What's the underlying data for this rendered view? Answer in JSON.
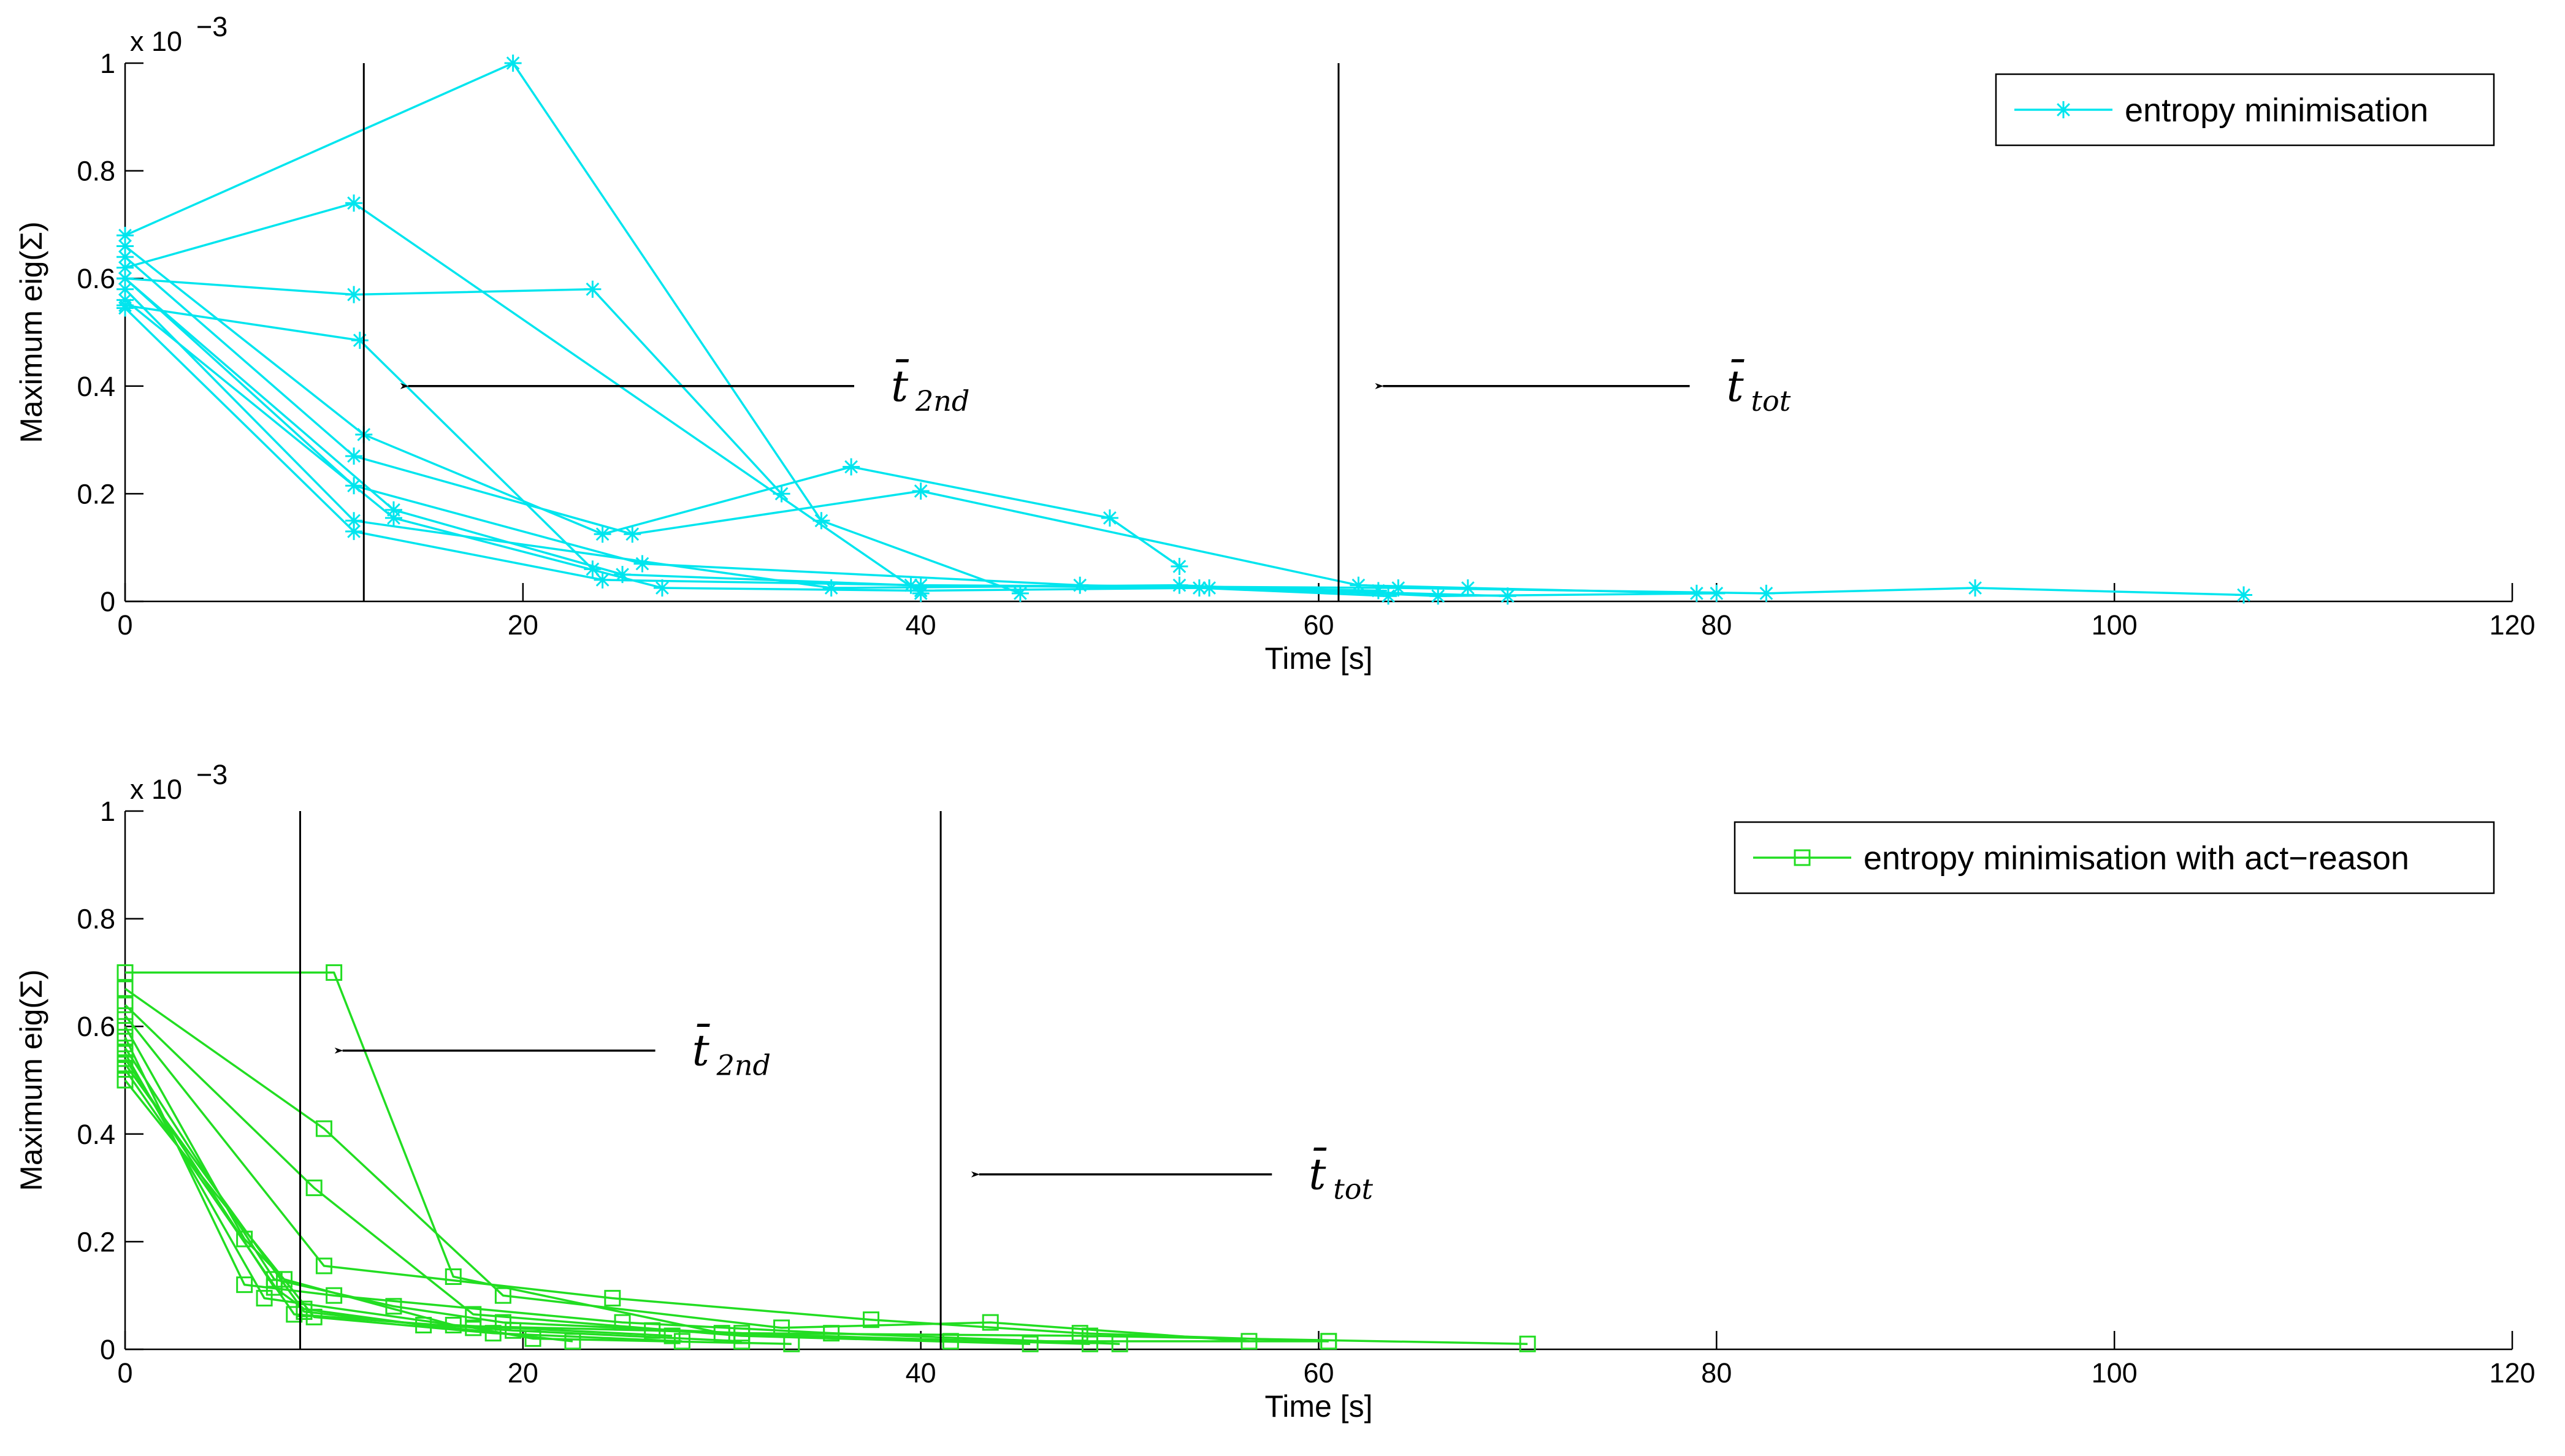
{
  "chart_data": [
    {
      "type": "line",
      "color": "#00e5ee",
      "marker": "asterisk",
      "xlabel": "Time [s]",
      "ylabel": "Maximum eig(Σ)",
      "exponent_label": {
        "base": "x 10",
        "power": "−3"
      },
      "xlim": [
        0,
        120
      ],
      "ylim": [
        0,
        1
      ],
      "x_ticks": [
        "0",
        "20",
        "40",
        "60",
        "80",
        "100",
        "120"
      ],
      "y_ticks": [
        "0",
        "0.2",
        "0.4",
        "0.6",
        "0.8",
        "1"
      ],
      "legend": {
        "label": "entropy minimisation",
        "position": "top-right"
      },
      "vlines": [
        {
          "x": 12,
          "label_main": "t̄",
          "label_sub": "2nd",
          "arrow_to_x": 13.8,
          "label_x": 38.5,
          "y": 0.4
        },
        {
          "x": 61,
          "label_main": "t̄",
          "label_sub": "tot",
          "arrow_to_x": 62.8,
          "label_x": 80.5,
          "y": 0.4
        }
      ],
      "series": [
        {
          "x": [
            0,
            19.5,
            35,
            45
          ],
          "y": [
            0.68,
            1.0,
            0.15,
            0.015
          ]
        },
        {
          "x": [
            0,
            11.5,
            40
          ],
          "y": [
            0.62,
            0.74,
            0.015
          ]
        },
        {
          "x": [
            0,
            11.5,
            23.5,
            33
          ],
          "y": [
            0.6,
            0.57,
            0.58,
            0.2
          ]
        },
        {
          "x": [
            0,
            11.8,
            23.5
          ],
          "y": [
            0.55,
            0.485,
            0.06
          ]
        },
        {
          "x": [
            0,
            12,
            24,
            36.5,
            49.5,
            53
          ],
          "y": [
            0.66,
            0.31,
            0.125,
            0.25,
            0.155,
            0.065
          ]
        },
        {
          "x": [
            0,
            11.5,
            25.5,
            40,
            62,
            67.5,
            79
          ],
          "y": [
            0.64,
            0.27,
            0.125,
            0.205,
            0.03,
            0.025,
            0.015
          ]
        },
        {
          "x": [
            0,
            11.5,
            26,
            48,
            63
          ],
          "y": [
            0.6,
            0.215,
            0.07,
            0.03,
            0.02
          ]
        },
        {
          "x": [
            0,
            11.5,
            35.5,
            53,
            66,
            80
          ],
          "y": [
            0.58,
            0.15,
            0.025,
            0.03,
            0.01,
            0.015
          ]
        },
        {
          "x": [
            0,
            11.5,
            24,
            40,
            64,
            82.5,
            93,
            106.5
          ],
          "y": [
            0.545,
            0.13,
            0.04,
            0.03,
            0.025,
            0.015,
            0.025,
            0.012
          ]
        },
        {
          "x": [
            0,
            13.5,
            25,
            39.5,
            54.5,
            69.5
          ],
          "y": [
            0.6,
            0.17,
            0.05,
            0.03,
            0.025,
            0.01
          ]
        },
        {
          "x": [
            0,
            13.5,
            27,
            40,
            54,
            63.5
          ],
          "y": [
            0.56,
            0.155,
            0.025,
            0.02,
            0.025,
            0.01
          ]
        }
      ]
    },
    {
      "type": "line",
      "color": "#22dd22",
      "marker": "square",
      "xlabel": "Time [s]",
      "ylabel": "Maximum eig(Σ)",
      "exponent_label": {
        "base": "x 10",
        "power": "−3"
      },
      "xlim": [
        0,
        120
      ],
      "ylim": [
        0,
        1
      ],
      "x_ticks": [
        "0",
        "20",
        "40",
        "60",
        "80",
        "100",
        "120"
      ],
      "y_ticks": [
        "0",
        "0.2",
        "0.4",
        "0.6",
        "0.8",
        "1"
      ],
      "legend": {
        "label": "entropy minimisation with act−reason",
        "position": "top-right"
      },
      "vlines": [
        {
          "x": 8.8,
          "label_main": "t̄",
          "label_sub": "2nd",
          "arrow_to_x": 10.5,
          "label_x": 28.5,
          "y": 0.555
        },
        {
          "x": 41,
          "label_main": "t̄",
          "label_sub": "tot",
          "arrow_to_x": 42.5,
          "label_x": 59.5,
          "y": 0.325
        }
      ],
      "series": [
        {
          "x": [
            0,
            10.5,
            16.5,
            30,
            48.5
          ],
          "y": [
            0.7,
            0.7,
            0.135,
            0.03,
            0.01
          ]
        },
        {
          "x": [
            0,
            10,
            19,
            33,
            43.5,
            56.5
          ],
          "y": [
            0.67,
            0.41,
            0.1,
            0.04,
            0.05,
            0.015
          ]
        },
        {
          "x": [
            0,
            9.5,
            17.5,
            31,
            45.5
          ],
          "y": [
            0.64,
            0.3,
            0.065,
            0.025,
            0.01
          ]
        },
        {
          "x": [
            0,
            10,
            24.5,
            37.5,
            48,
            60.5
          ],
          "y": [
            0.62,
            0.155,
            0.095,
            0.055,
            0.03,
            0.015
          ]
        },
        {
          "x": [
            0,
            6,
            8,
            16.5,
            27.5
          ],
          "y": [
            0.6,
            0.205,
            0.13,
            0.045,
            0.025
          ]
        },
        {
          "x": [
            0,
            6,
            10.5,
            25,
            35.5,
            50
          ],
          "y": [
            0.58,
            0.12,
            0.1,
            0.05,
            0.03,
            0.01
          ]
        },
        {
          "x": [
            0,
            7.5,
            13.5,
            19,
            31,
            48.5,
            70.5
          ],
          "y": [
            0.56,
            0.13,
            0.08,
            0.05,
            0.03,
            0.025,
            0.01
          ]
        },
        {
          "x": [
            0,
            7.5,
            9,
            15,
            26.5,
            41.5,
            60.5
          ],
          "y": [
            0.54,
            0.115,
            0.075,
            0.045,
            0.035,
            0.015,
            0.015
          ]
        },
        {
          "x": [
            0,
            8.5,
            19.5,
            31
          ],
          "y": [
            0.52,
            0.065,
            0.035,
            0.015
          ]
        },
        {
          "x": [
            0,
            9.5,
            18.5,
            28
          ],
          "y": [
            0.5,
            0.06,
            0.03,
            0.015
          ]
        },
        {
          "x": [
            0,
            7,
            17.5,
            20.5,
            33.5
          ],
          "y": [
            0.55,
            0.095,
            0.04,
            0.02,
            0.01
          ]
        },
        {
          "x": [
            0,
            9,
            22.5
          ],
          "y": [
            0.53,
            0.07,
            0.015
          ]
        }
      ]
    }
  ]
}
